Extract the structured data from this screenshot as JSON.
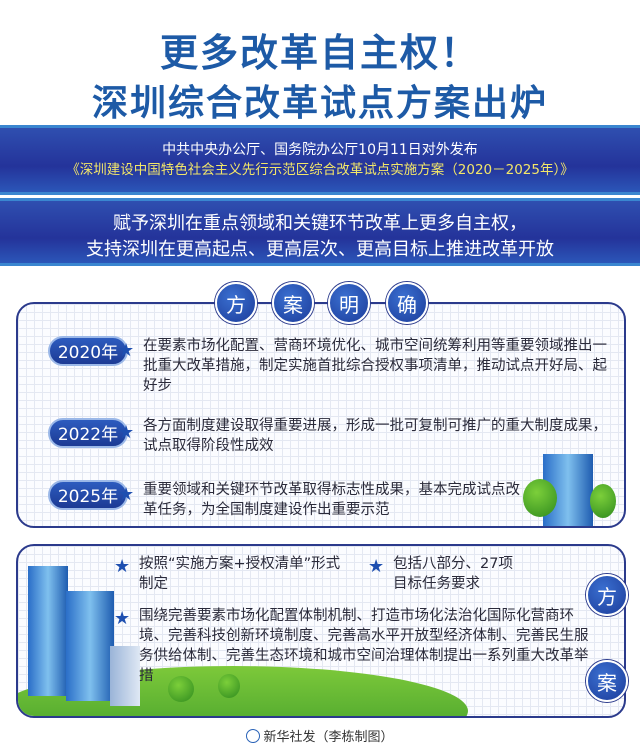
{
  "header": {
    "title_line1": "更多改革自主权！",
    "title_line2": "深圳综合改革试点方案出炉"
  },
  "band1": {
    "line1": "中共中央办公厅、国务院办公厅10月11日对外发布",
    "line2": "《深圳建设中国特色社会主义先行示范区综合改革试点实施方案（2020－2025年）》"
  },
  "band2": {
    "line1": "赋予深圳在重点领域和关键环节改革上更多自主权，",
    "line2": "支持深圳在更高起点、更高层次、更高目标上推进改革开放"
  },
  "section1": {
    "heading_chars": [
      "方",
      "案",
      "明",
      "确"
    ],
    "items": [
      {
        "year": "2020年",
        "text": "在要素市场化配置、营商环境优化、城市空间统筹利用等重要领域推出一批重大改革措施，制定实施首批综合授权事项清单，推动试点开好局、起好步"
      },
      {
        "year": "2022年",
        "text": "各方面制度建设取得重要进展，形成一批可复制可推广的重大制度成果，试点取得阶段性成效"
      },
      {
        "year": "2025年",
        "text": "重要领域和关键环节改革取得标志性成果，基本完成试点改革任务，为全国制度建设作出重要示范"
      }
    ]
  },
  "section2": {
    "heading_chars": [
      "方",
      "案"
    ],
    "point1": "按照“实施方案+授权清单”形式制定",
    "point2": "包括八部分、27项目标任务要求",
    "point3": "围绕完善要素市场化配置体制机制、打造市场化法治化国际化营商环境、完善科技创新环境制度、完善高水平开放型经济体制、完善民生服务供给体制、完善生态环境和城市空间治理体制提出一系列重大改革举措"
  },
  "credit": "新华社发（李栋制图）",
  "colors": {
    "title_blue": "#1d5aa6",
    "band_blue": "#24339a",
    "subtitle_yellow": "#f2e66a",
    "star_blue": "#1e4fb0"
  }
}
